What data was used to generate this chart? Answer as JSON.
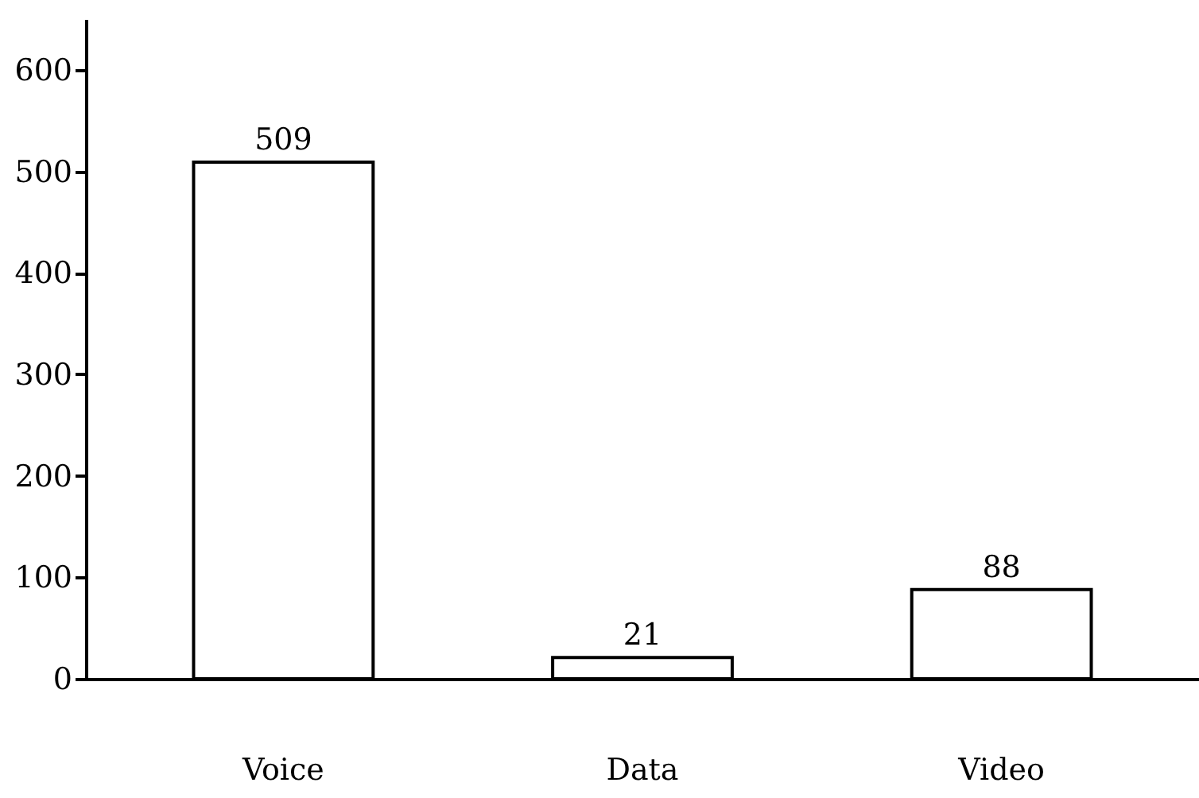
{
  "chart_data": {
    "type": "bar",
    "categories": [
      "Voice",
      "Data",
      "Video"
    ],
    "values": [
      509,
      21,
      88
    ],
    "color": "#ffffff",
    "ylim": [
      0,
      650
    ],
    "yticks": [
      0,
      100,
      200,
      300,
      400,
      500,
      600
    ],
    "data_labels": true,
    "grid": false
  }
}
